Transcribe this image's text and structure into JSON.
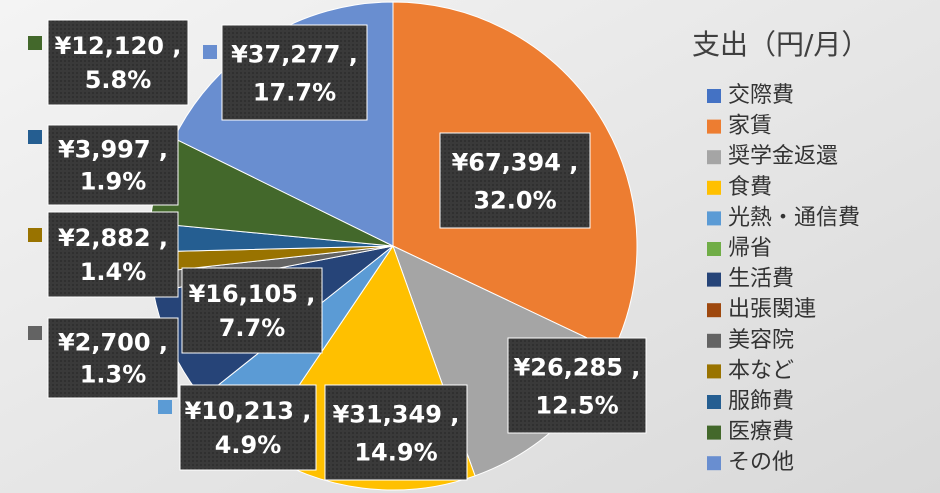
{
  "chart_data": {
    "type": "pie",
    "title": "支出（円/月）",
    "categories": [
      "交際費",
      "家賃",
      "奨学金返還",
      "食費",
      "光熱・通信費",
      "帰省",
      "生活費",
      "出張関連",
      "美容院",
      "本など",
      "服飾費",
      "医療費",
      "その他"
    ],
    "values": [
      0,
      67394,
      26285,
      31349,
      10213,
      0,
      16105,
      0,
      2700,
      2882,
      3997,
      12120,
      37277
    ],
    "value_labels": [
      null,
      "¥67,394 ,",
      "¥26,285 ,",
      "¥31,349 ,",
      "¥10,213 ,",
      null,
      "¥16,105 ,",
      null,
      "¥2,700 ,",
      "¥2,882 ,",
      "¥3,997 ,",
      "¥12,120 ,",
      "¥37,277 ,"
    ],
    "percent_labels": [
      null,
      "32.0%",
      "12.5%",
      "14.9%",
      "4.9%",
      null,
      "7.7%",
      null,
      "1.3%",
      "1.4%",
      "1.9%",
      "5.8%",
      "17.7%"
    ],
    "colors": [
      "#4472c4",
      "#ed7d31",
      "#a5a5a5",
      "#ffc000",
      "#5b9bd5",
      "#70ad47",
      "#264478",
      "#9e480e",
      "#636363",
      "#997300",
      "#255e91",
      "#43682b",
      "#698ed0"
    ]
  }
}
